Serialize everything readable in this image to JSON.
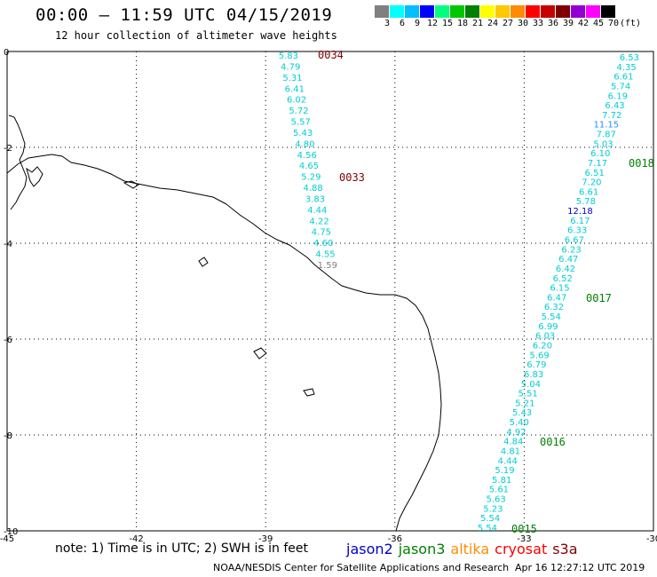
{
  "title": "00:00 – 11:59 UTC 04/15/2019",
  "subtitle": "12 hour collection of altimeter wave heights",
  "scale": {
    "unit": "(ft)",
    "labels": [
      "3",
      "6",
      "9",
      "12",
      "15",
      "18",
      "21",
      "24",
      "27",
      "30",
      "33",
      "36",
      "39",
      "42",
      "45",
      "70"
    ],
    "colors": [
      "#808080",
      "#00ffff",
      "#00bfff",
      "#0000ff",
      "#00ff7f",
      "#00c800",
      "#008000",
      "#ffff00",
      "#ffc800",
      "#ff8c00",
      "#ff0000",
      "#c80000",
      "#800000",
      "#9400d3",
      "#ff00ff",
      "#000000"
    ]
  },
  "axes": {
    "x_ticks": [
      "-45",
      "-42",
      "-39",
      "-36",
      "-33",
      "-30"
    ],
    "y_ticks": [
      "0",
      "-2",
      "-4",
      "-6",
      "-8",
      "-10"
    ]
  },
  "tracks": [
    {
      "id": "0034",
      "id_color": "#800000",
      "values": [
        "5.83",
        "4.79",
        "5.31",
        "6.41",
        "6.02",
        "5.72",
        "5.57",
        "5.43",
        "4.80",
        "4.56",
        "4.65",
        "5.29",
        "4.88",
        "3.83",
        "4.44",
        "4.22",
        "4.75",
        "4.60",
        "4.55",
        "1.59"
      ]
    },
    {
      "id": "0033",
      "id_color": "#800000"
    },
    {
      "id": "0018",
      "id_color": "#008000",
      "values": [
        "6.53",
        "4.35",
        "6.61",
        "5.74",
        "6.19",
        "6.43",
        "7.72",
        "11.15",
        "7.87",
        "5.03",
        "6.10",
        "7.17",
        "6.51",
        "7.20",
        "6.61",
        "5.78",
        "12.18",
        "6.17",
        "6.33",
        "6.67",
        "6.23",
        "6.47",
        "6.42",
        "6.52",
        "6.15",
        "6.47",
        "6.32",
        "5.54",
        "6.99",
        "6.03",
        "6.20",
        "5.69",
        "6.79",
        "6.83",
        "5.04",
        "5.51",
        "5.21",
        "5.43",
        "5.40",
        "4.92",
        "4.84",
        "4.81",
        "4.44",
        "5.19",
        "5.81",
        "5.61",
        "5.63",
        "5.23",
        "5.54",
        "5.54"
      ]
    },
    {
      "id": "0017",
      "id_color": "#008000"
    },
    {
      "id": "0016",
      "id_color": "#008000"
    },
    {
      "id": "0015",
      "id_color": "#008000"
    }
  ],
  "note": "note: 1) Time is in UTC; 2) SWH is in feet",
  "satellites": [
    {
      "name": "jason2",
      "color": "#0000cd"
    },
    {
      "name": "jason3",
      "color": "#008000"
    },
    {
      "name": "altika",
      "color": "#ff8c00"
    },
    {
      "name": "cryosat",
      "color": "#ff0000"
    },
    {
      "name": "s3a",
      "color": "#800000"
    }
  ],
  "credit": "NOAA/NESDIS Center for Satellite Applications and Research",
  "timestamp": "Apr 16 12:27:12 UTC 2019"
}
